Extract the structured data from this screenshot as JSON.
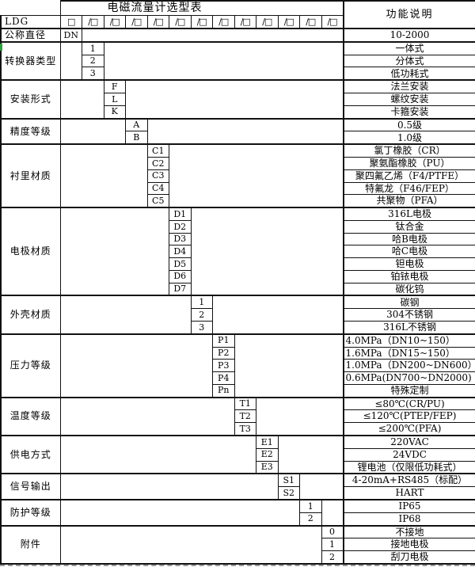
{
  "title": "电磁流量计选型表",
  "right_header": "功能说明",
  "model_prefix": "LDG",
  "header_boxes": {
    "first": "□",
    "slot": "/□",
    "slot_count": 12
  },
  "colors": {
    "artifact_green": "#2f9e3f",
    "border": "#111111"
  },
  "sections": [
    {
      "label": "公称直径",
      "col": 1,
      "label_align": "left",
      "rows": [
        {
          "code": "DN",
          "desc": "10-2000"
        }
      ]
    },
    {
      "label": "转换器类型",
      "col": 2,
      "rows": [
        {
          "code": "1",
          "desc": "一体式"
        },
        {
          "code": "2",
          "desc": "分体式"
        },
        {
          "code": "3",
          "desc": "低功耗式"
        }
      ]
    },
    {
      "label": "安装形式",
      "col": 3,
      "rows": [
        {
          "code": "F",
          "desc": "法兰安装"
        },
        {
          "code": "L",
          "desc": "螺纹安装"
        },
        {
          "code": "K",
          "desc": "卡箍安装"
        }
      ]
    },
    {
      "label": "精度等级",
      "col": 4,
      "rows": [
        {
          "code": "A",
          "desc": "0.5级"
        },
        {
          "code": "B",
          "desc": "1.0级"
        }
      ]
    },
    {
      "label": "衬里材质",
      "col": 5,
      "rows": [
        {
          "code": "C1",
          "desc": "氯丁橡胶（CR）"
        },
        {
          "code": "C2",
          "desc": "聚氨酯橡胶（PU）"
        },
        {
          "code": "C3",
          "desc": "聚四氟乙烯（F4/PTFE）"
        },
        {
          "code": "C4",
          "desc": "特氟龙（F46/FEP）"
        },
        {
          "code": "C5",
          "desc": "共聚物（PFA）"
        }
      ]
    },
    {
      "label": "电极材质",
      "col": 6,
      "rows": [
        {
          "code": "D1",
          "desc": "316L电极"
        },
        {
          "code": "D2",
          "desc": "钛合金"
        },
        {
          "code": "D3",
          "desc": "哈B电极"
        },
        {
          "code": "D4",
          "desc": "哈C电极"
        },
        {
          "code": "D5",
          "desc": "钽电极"
        },
        {
          "code": "D6",
          "desc": "铂铱电极"
        },
        {
          "code": "D7",
          "desc": "碳化钨"
        }
      ]
    },
    {
      "label": "外壳材质",
      "col": 7,
      "rows": [
        {
          "code": "1",
          "desc": "碳钢"
        },
        {
          "code": "2",
          "desc": "304不锈钢"
        },
        {
          "code": "3",
          "desc": "316L不锈钢"
        }
      ]
    },
    {
      "label": "压力等级",
      "col": 8,
      "rows": [
        {
          "code": "P1",
          "desc": "4.0MPa（DN10~150）",
          "align": "left"
        },
        {
          "code": "P2",
          "desc": "1.6MPa（DN15~150）",
          "align": "left"
        },
        {
          "code": "P3",
          "desc": "1.0MPa（DN200~DN600）",
          "align": "left"
        },
        {
          "code": "P4",
          "desc": "0.6MPa(DN700~DN2000)",
          "align": "left"
        },
        {
          "code": "Pn",
          "desc": "特殊定制"
        }
      ]
    },
    {
      "label": "温度等级",
      "col": 9,
      "rows": [
        {
          "code": "T1",
          "desc": "≤80℃(CR/PU)"
        },
        {
          "code": "T2",
          "desc": "≤120℃(PTEP/FEP)"
        },
        {
          "code": "T3",
          "desc": "≤200℃(PFA)"
        }
      ]
    },
    {
      "label": "供电方式",
      "col": 10,
      "rows": [
        {
          "code": "E1",
          "desc": "220VAC"
        },
        {
          "code": "E2",
          "desc": "24VDC"
        },
        {
          "code": "E3",
          "desc": "锂电池（仅限低功耗式）"
        }
      ]
    },
    {
      "label": "信号输出",
      "col": 11,
      "rows": [
        {
          "code": "S1",
          "desc": "4-20mA+RS485（标配）"
        },
        {
          "code": "S2",
          "desc": "HART"
        }
      ]
    },
    {
      "label": "防护等级",
      "col": 12,
      "rows": [
        {
          "code": "1",
          "desc": "IP65"
        },
        {
          "code": "2",
          "desc": "IP68"
        }
      ]
    },
    {
      "label": "附件",
      "col": 13,
      "rows": [
        {
          "code": "0",
          "desc": "不接地"
        },
        {
          "code": "1",
          "desc": "接地电极"
        },
        {
          "code": "2",
          "desc": "刮刀电极"
        }
      ]
    }
  ]
}
